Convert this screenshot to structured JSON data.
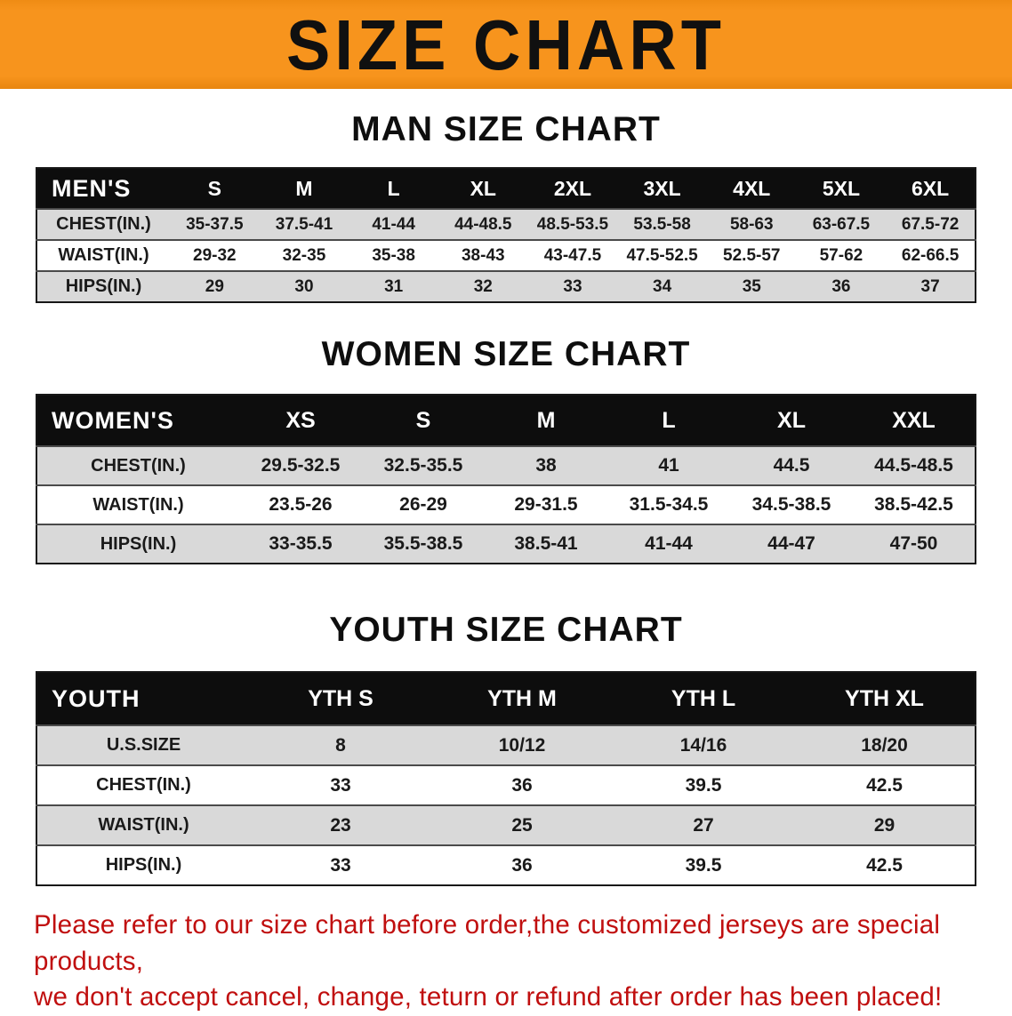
{
  "banner": {
    "title": "SIZE CHART",
    "bg_color": "#F7941D",
    "text_color": "#101010"
  },
  "colors": {
    "table_header_bg": "#0D0D0D",
    "table_shaded_row": "#D9D9D9",
    "footer_text": "#C00F0F"
  },
  "sections": [
    {
      "heading": "MAN SIZE CHART",
      "table": {
        "header_label": "MEN'S",
        "columns": [
          "S",
          "M",
          "L",
          "XL",
          "2XL",
          "3XL",
          "4XL",
          "5XL",
          "6XL"
        ],
        "rows": [
          {
            "label": "CHEST(IN.)",
            "values": [
              "35-37.5",
              "37.5-41",
              "41-44",
              "44-48.5",
              "48.5-53.5",
              "53.5-58",
              "58-63",
              "63-67.5",
              "67.5-72"
            ]
          },
          {
            "label": "WAIST(IN.)",
            "values": [
              "29-32",
              "32-35",
              "35-38",
              "38-43",
              "43-47.5",
              "47.5-52.5",
              "52.5-57",
              "57-62",
              "62-66.5"
            ]
          },
          {
            "label": "HIPS(IN.)",
            "values": [
              "29",
              "30",
              "31",
              "32",
              "33",
              "34",
              "35",
              "36",
              "37"
            ]
          }
        ]
      }
    },
    {
      "heading": "WOMEN SIZE CHART",
      "table": {
        "header_label": "WOMEN'S",
        "columns": [
          "XS",
          "S",
          "M",
          "L",
          "XL",
          "XXL"
        ],
        "rows": [
          {
            "label": "CHEST(IN.)",
            "values": [
              "29.5-32.5",
              "32.5-35.5",
              "38",
              "41",
              "44.5",
              "44.5-48.5"
            ]
          },
          {
            "label": "WAIST(IN.)",
            "values": [
              "23.5-26",
              "26-29",
              "29-31.5",
              "31.5-34.5",
              "34.5-38.5",
              "38.5-42.5"
            ]
          },
          {
            "label": "HIPS(IN.)",
            "values": [
              "33-35.5",
              "35.5-38.5",
              "38.5-41",
              "41-44",
              "44-47",
              "47-50"
            ]
          }
        ]
      }
    },
    {
      "heading": "YOUTH SIZE CHART",
      "table": {
        "header_label": "YOUTH",
        "columns": [
          "YTH S",
          "YTH M",
          "YTH L",
          "YTH XL"
        ],
        "rows": [
          {
            "label": "U.S.SIZE",
            "values": [
              "8",
              "10/12",
              "14/16",
              "18/20"
            ]
          },
          {
            "label": "CHEST(IN.)",
            "values": [
              "33",
              "36",
              "39.5",
              "42.5"
            ]
          },
          {
            "label": "WAIST(IN.)",
            "values": [
              "23",
              "25",
              "27",
              "29"
            ]
          },
          {
            "label": "HIPS(IN.)",
            "values": [
              "33",
              "36",
              "39.5",
              "42.5"
            ]
          }
        ]
      }
    }
  ],
  "footer": {
    "line1": "Please refer to our size chart before order,the customized jerseys are special products,",
    "line2": "we don't accept cancel, change, teturn or refund after order has been placed!"
  }
}
